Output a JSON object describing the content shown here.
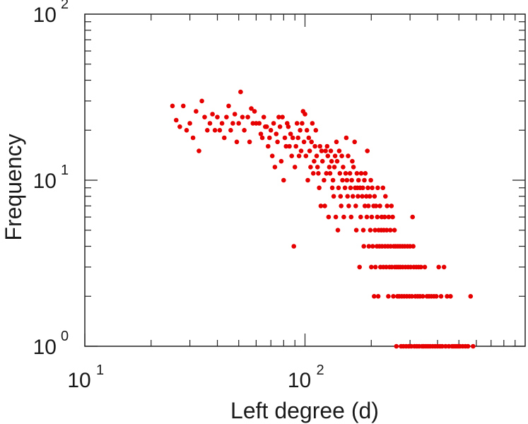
{
  "chart_data": {
    "type": "scatter",
    "title": "",
    "xlabel": "Left degree (d)",
    "ylabel": "Frequency",
    "xscale": "log",
    "yscale": "log",
    "xlim": [
      10,
      1000
    ],
    "ylim": [
      1,
      100
    ],
    "grid": false,
    "legend": "none",
    "marker_color": "#e60000",
    "x_ticks": [
      {
        "value": 10,
        "base": "10",
        "exp": "1"
      },
      {
        "value": 100,
        "base": "10",
        "exp": "2"
      }
    ],
    "y_ticks": [
      {
        "value": 1,
        "base": "10",
        "exp": "0"
      },
      {
        "value": 10,
        "base": "10",
        "exp": "1"
      },
      {
        "value": 100,
        "base": "10",
        "exp": "2"
      }
    ],
    "series": [
      {
        "points": [
          [
            25,
            28
          ],
          [
            26,
            23
          ],
          [
            27,
            21
          ],
          [
            28,
            28
          ],
          [
            29,
            20
          ],
          [
            30,
            22
          ],
          [
            31,
            18
          ],
          [
            32,
            26
          ],
          [
            33,
            15
          ],
          [
            34,
            30
          ],
          [
            35,
            24
          ],
          [
            36,
            20
          ],
          [
            37,
            22
          ],
          [
            38,
            25
          ],
          [
            39,
            20
          ],
          [
            40,
            24
          ],
          [
            41,
            20
          ],
          [
            42,
            22
          ],
          [
            43,
            18
          ],
          [
            44,
            24
          ],
          [
            45,
            28
          ],
          [
            46,
            20
          ],
          [
            47,
            22
          ],
          [
            48,
            25
          ],
          [
            49,
            17
          ],
          [
            50,
            22
          ],
          [
            51,
            34
          ],
          [
            52,
            24
          ],
          [
            53,
            20
          ],
          [
            55,
            24
          ],
          [
            56,
            17
          ],
          [
            57,
            27
          ],
          [
            58,
            22
          ],
          [
            59,
            26
          ],
          [
            60,
            22
          ],
          [
            62,
            22
          ],
          [
            63,
            19
          ],
          [
            64,
            18
          ],
          [
            65,
            24
          ],
          [
            66,
            21
          ],
          [
            67,
            21
          ],
          [
            68,
            16
          ],
          [
            69,
            18
          ],
          [
            70,
            20
          ],
          [
            71,
            14
          ],
          [
            72,
            22
          ],
          [
            73,
            12
          ],
          [
            74,
            19
          ],
          [
            75,
            17
          ],
          [
            76,
            24
          ],
          [
            77,
            21
          ],
          [
            78,
            13
          ],
          [
            79,
            24
          ],
          [
            80,
            10
          ],
          [
            81,
            18
          ],
          [
            82,
            16
          ],
          [
            83,
            22
          ],
          [
            84,
            21
          ],
          [
            85,
            16
          ],
          [
            86,
            19
          ],
          [
            87,
            14
          ],
          [
            88,
            18
          ],
          [
            89,
            4
          ],
          [
            90,
            12
          ],
          [
            91,
            16
          ],
          [
            92,
            22
          ],
          [
            93,
            18
          ],
          [
            94,
            14
          ],
          [
            95,
            20
          ],
          [
            96,
            15
          ],
          [
            97,
            22
          ],
          [
            98,
            26
          ],
          [
            99,
            17
          ],
          [
            100,
            25
          ],
          [
            101,
            14
          ],
          [
            102,
            20
          ],
          [
            103,
            10
          ],
          [
            104,
            18
          ],
          [
            105,
            15
          ],
          [
            106,
            12
          ],
          [
            107,
            17
          ],
          [
            108,
            22
          ],
          [
            109,
            11
          ],
          [
            110,
            13
          ],
          [
            111,
            16
          ],
          [
            112,
            20
          ],
          [
            113,
            14
          ],
          [
            114,
            12
          ],
          [
            115,
            11
          ],
          [
            116,
            9
          ],
          [
            117,
            16
          ],
          [
            118,
            7
          ],
          [
            119,
            15
          ],
          [
            120,
            13
          ],
          [
            122,
            10
          ],
          [
            123,
            7
          ],
          [
            124,
            15
          ],
          [
            125,
            11
          ],
          [
            126,
            16
          ],
          [
            127,
            14
          ],
          [
            128,
            6
          ],
          [
            129,
            12
          ],
          [
            130,
            11
          ],
          [
            131,
            15
          ],
          [
            132,
            13
          ],
          [
            133,
            9
          ],
          [
            134,
            10
          ],
          [
            135,
            8
          ],
          [
            136,
            12
          ],
          [
            137,
            14
          ],
          [
            138,
            6
          ],
          [
            139,
            17
          ],
          [
            140,
            13
          ],
          [
            141,
            5
          ],
          [
            142,
            9
          ],
          [
            143,
            15
          ],
          [
            144,
            11
          ],
          [
            145,
            8
          ],
          [
            146,
            7
          ],
          [
            147,
            14
          ],
          [
            148,
            10
          ],
          [
            149,
            12
          ],
          [
            150,
            6
          ],
          [
            152,
            9
          ],
          [
            153,
            11
          ],
          [
            154,
            18
          ],
          [
            155,
            10
          ],
          [
            156,
            8
          ],
          [
            157,
            14
          ],
          [
            158,
            7
          ],
          [
            160,
            11
          ],
          [
            161,
            9
          ],
          [
            162,
            6
          ],
          [
            163,
            10
          ],
          [
            164,
            13
          ],
          [
            165,
            8
          ],
          [
            166,
            12
          ],
          [
            168,
            17
          ],
          [
            169,
            9
          ],
          [
            170,
            7
          ],
          [
            171,
            5
          ],
          [
            172,
            11
          ],
          [
            173,
            9
          ],
          [
            174,
            8
          ],
          [
            175,
            10
          ],
          [
            177,
            3
          ],
          [
            178,
            9
          ],
          [
            179,
            6
          ],
          [
            180,
            11
          ],
          [
            182,
            8
          ],
          [
            183,
            9
          ],
          [
            184,
            5
          ],
          [
            185,
            4
          ],
          [
            186,
            10
          ],
          [
            187,
            7
          ],
          [
            188,
            11
          ],
          [
            190,
            8
          ],
          [
            191,
            6
          ],
          [
            192,
            15
          ],
          [
            193,
            9
          ],
          [
            194,
            7
          ],
          [
            195,
            4
          ],
          [
            197,
            8
          ],
          [
            198,
            5
          ],
          [
            199,
            10
          ],
          [
            200,
            3
          ],
          [
            201,
            6
          ],
          [
            202,
            9
          ],
          [
            203,
            4
          ],
          [
            205,
            7
          ],
          [
            206,
            2
          ],
          [
            207,
            8
          ],
          [
            208,
            5
          ],
          [
            209,
            3
          ],
          [
            210,
            7
          ],
          [
            212,
            4
          ],
          [
            213,
            6
          ],
          [
            214,
            9
          ],
          [
            215,
            2
          ],
          [
            216,
            5
          ],
          [
            218,
            4
          ],
          [
            219,
            7
          ],
          [
            220,
            3
          ],
          [
            222,
            5
          ],
          [
            223,
            6
          ],
          [
            224,
            4
          ],
          [
            226,
            9
          ],
          [
            227,
            3
          ],
          [
            228,
            5
          ],
          [
            230,
            6
          ],
          [
            231,
            4
          ],
          [
            232,
            8
          ],
          [
            234,
            3
          ],
          [
            235,
            5
          ],
          [
            236,
            7
          ],
          [
            238,
            4
          ],
          [
            239,
            2
          ],
          [
            240,
            6
          ],
          [
            242,
            3
          ],
          [
            244,
            5
          ],
          [
            245,
            4
          ],
          [
            247,
            7
          ],
          [
            248,
            3
          ],
          [
            250,
            6
          ],
          [
            252,
            2
          ],
          [
            253,
            4
          ],
          [
            255,
            5
          ],
          [
            256,
            3
          ],
          [
            258,
            4
          ],
          [
            260,
            1
          ],
          [
            261,
            3
          ],
          [
            263,
            2
          ],
          [
            264,
            4
          ],
          [
            266,
            3
          ],
          [
            268,
            2
          ],
          [
            270,
            4
          ],
          [
            271,
            3
          ],
          [
            273,
            1
          ],
          [
            275,
            2
          ],
          [
            277,
            4
          ],
          [
            278,
            3
          ],
          [
            280,
            1
          ],
          [
            282,
            2
          ],
          [
            284,
            4
          ],
          [
            286,
            3
          ],
          [
            288,
            1
          ],
          [
            290,
            2
          ],
          [
            292,
            4
          ],
          [
            294,
            3
          ],
          [
            296,
            1
          ],
          [
            298,
            2
          ],
          [
            300,
            4
          ],
          [
            302,
            3
          ],
          [
            304,
            1
          ],
          [
            306,
            2
          ],
          [
            308,
            6
          ],
          [
            310,
            4
          ],
          [
            312,
            3
          ],
          [
            314,
            1
          ],
          [
            317,
            2
          ],
          [
            320,
            3
          ],
          [
            322,
            1
          ],
          [
            325,
            2
          ],
          [
            328,
            3
          ],
          [
            330,
            1
          ],
          [
            333,
            2
          ],
          [
            336,
            3
          ],
          [
            340,
            1
          ],
          [
            343,
            2
          ],
          [
            346,
            1
          ],
          [
            350,
            3
          ],
          [
            354,
            1
          ],
          [
            358,
            2
          ],
          [
            362,
            1
          ],
          [
            366,
            2
          ],
          [
            370,
            1
          ],
          [
            375,
            2
          ],
          [
            380,
            1
          ],
          [
            385,
            2
          ],
          [
            390,
            1
          ],
          [
            395,
            2
          ],
          [
            400,
            1
          ],
          [
            405,
            3
          ],
          [
            410,
            1
          ],
          [
            415,
            2
          ],
          [
            420,
            1
          ],
          [
            428,
            3
          ],
          [
            435,
            1
          ],
          [
            442,
            2
          ],
          [
            450,
            1
          ],
          [
            458,
            2
          ],
          [
            466,
            1
          ],
          [
            475,
            1
          ],
          [
            485,
            1
          ],
          [
            495,
            1
          ],
          [
            505,
            1
          ],
          [
            520,
            1
          ],
          [
            535,
            1
          ],
          [
            550,
            1
          ],
          [
            565,
            2
          ],
          [
            580,
            1
          ]
        ]
      }
    ]
  }
}
